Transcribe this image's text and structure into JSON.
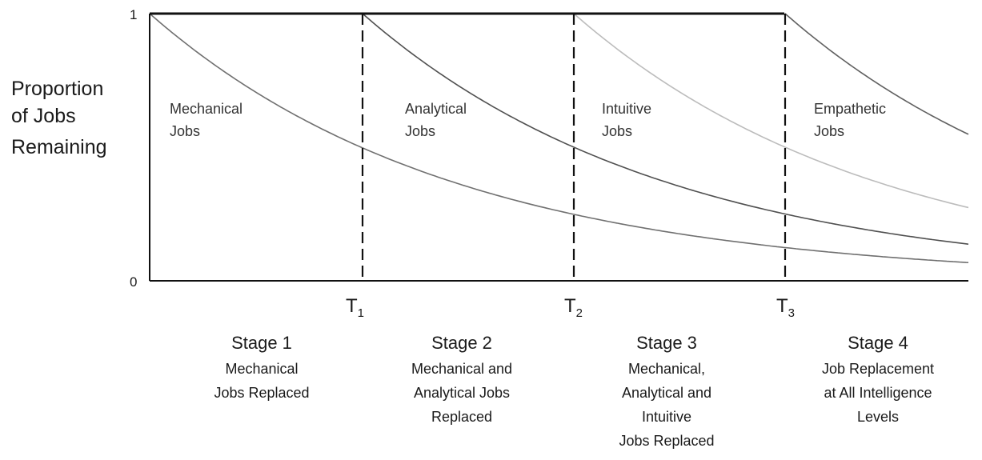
{
  "y_axis": {
    "label_lines": [
      "Proportion",
      "of Jobs",
      "Remaining"
    ],
    "tick_top": "1",
    "tick_bottom": "0"
  },
  "thresholds": [
    {
      "main": "T",
      "sub": "1"
    },
    {
      "main": "T",
      "sub": "2"
    },
    {
      "main": "T",
      "sub": "3"
    }
  ],
  "curves": [
    {
      "label_lines": [
        "Mechanical",
        "Jobs"
      ],
      "color": "#707070"
    },
    {
      "label_lines": [
        "Analytical",
        "Jobs"
      ],
      "color": "#505050"
    },
    {
      "label_lines": [
        "Intuitive",
        "Jobs"
      ],
      "color": "#bcbcbc"
    },
    {
      "label_lines": [
        "Empathetic",
        "Jobs"
      ],
      "color": "#606060"
    }
  ],
  "stages": [
    {
      "title": "Stage 1",
      "lines": [
        "Mechanical",
        "Jobs Replaced"
      ]
    },
    {
      "title": "Stage 2",
      "lines": [
        "Mechanical and",
        "Analytical Jobs",
        "Replaced"
      ]
    },
    {
      "title": "Stage 3",
      "lines": [
        "Mechanical,",
        "Analytical and",
        "Intuitive",
        "Jobs Replaced"
      ]
    },
    {
      "title": "Stage 4",
      "lines": [
        "Job Replacement",
        "at All Intelligence",
        "Levels"
      ]
    }
  ],
  "colors": {
    "axis": "#111111",
    "top_line": "#111111",
    "dashed": "#111111"
  }
}
